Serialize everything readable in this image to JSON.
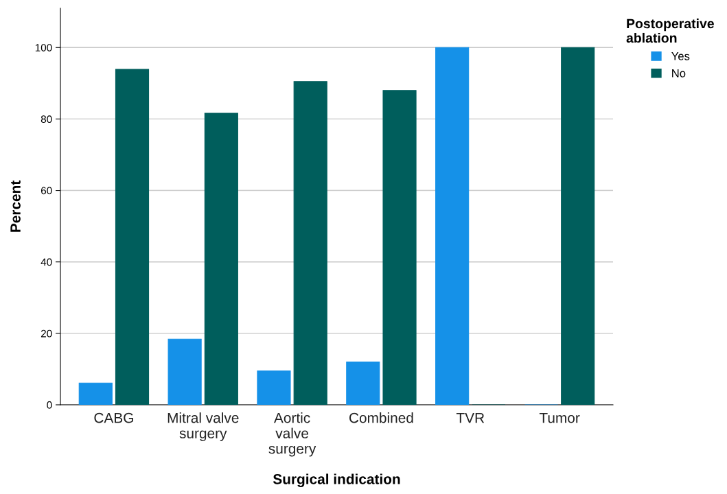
{
  "chart_data": {
    "type": "bar",
    "xlabel": "Surgical indication",
    "ylabel": "Percent",
    "legend_title": "Postoperative\nablation",
    "categories": [
      "CABG",
      "Mitral valve\nsurgery",
      "Aortic\nvalve\nsurgery",
      "Combined",
      "TVR",
      "Tumor"
    ],
    "series": [
      {
        "name": "Yes",
        "color": "#1591e8",
        "values": [
          6.1,
          18.4,
          9.5,
          12.0,
          100,
          0
        ]
      },
      {
        "name": "No",
        "color": "#005e5c",
        "values": [
          93.9,
          81.6,
          90.5,
          88.0,
          0,
          100
        ]
      }
    ],
    "ylim": [
      0,
      111
    ],
    "yticks": [
      0,
      20,
      40,
      60,
      80,
      100
    ],
    "grid": "y",
    "legend": "top right"
  }
}
